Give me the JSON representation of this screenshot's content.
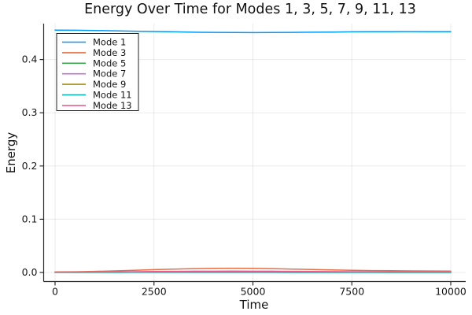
{
  "chart_data": {
    "type": "line",
    "title": "Energy Over Time for Modes 1, 3, 5, 7, 9, 11, 13",
    "xlabel": "Time",
    "ylabel": "Energy",
    "xlim": [
      0,
      10000
    ],
    "ylim": [
      0,
      0.47
    ],
    "xticks": [
      0,
      2500,
      5000,
      7500,
      10000
    ],
    "yticks": [
      0.0,
      0.1,
      0.2,
      0.3,
      0.4
    ],
    "grid": true,
    "legend_position": "top-left",
    "colors": {
      "axis": "#2a2a2a",
      "grid": "rgba(0,0,0,0.08)",
      "legend_border": "#222222",
      "background": "#ffffff"
    },
    "x": [
      0,
      500,
      1000,
      1500,
      2000,
      2500,
      3000,
      3500,
      4000,
      4500,
      5000,
      5500,
      6000,
      6500,
      7000,
      7500,
      8000,
      8500,
      9000,
      9500,
      10000
    ],
    "series": [
      {
        "name": "Mode 1",
        "color": "#009AFA",
        "values": [
          0.4553,
          0.455,
          0.4546,
          0.454,
          0.4533,
          0.4526,
          0.452,
          0.4514,
          0.451,
          0.4507,
          0.4506,
          0.4507,
          0.451,
          0.4513,
          0.4517,
          0.452,
          0.4522,
          0.4524,
          0.4525,
          0.4524,
          0.4522
        ]
      },
      {
        "name": "Mode 3",
        "color": "#E36F47",
        "values": [
          0.001,
          0.0014,
          0.0021,
          0.003,
          0.0041,
          0.0053,
          0.0064,
          0.0073,
          0.0078,
          0.008,
          0.0078,
          0.0072,
          0.0064,
          0.0056,
          0.0048,
          0.0041,
          0.0036,
          0.0032,
          0.0029,
          0.0028,
          0.0027
        ]
      },
      {
        "name": "Mode 5",
        "color": "#3DA44E",
        "values": [
          0.0004,
          0.0005,
          0.0006,
          0.0007,
          0.0008,
          0.0009,
          0.001,
          0.001,
          0.0011,
          0.0011,
          0.001,
          0.001,
          0.0009,
          0.0008,
          0.0008,
          0.0007,
          0.0007,
          0.0006,
          0.0006,
          0.0006,
          0.0006
        ]
      },
      {
        "name": "Mode 7",
        "color": "#C371D2",
        "values": [
          0.0003,
          0.0003,
          0.0004,
          0.0004,
          0.0005,
          0.0005,
          0.0006,
          0.0006,
          0.0006,
          0.0006,
          0.0006,
          0.0005,
          0.0005,
          0.0005,
          0.0004,
          0.0004,
          0.0004,
          0.0004,
          0.0003,
          0.0003,
          0.0003
        ]
      },
      {
        "name": "Mode 9",
        "color": "#AC8E17",
        "values": [
          0.0002,
          0.0002,
          0.0003,
          0.0003,
          0.0003,
          0.0004,
          0.0004,
          0.0004,
          0.0004,
          0.0004,
          0.0004,
          0.0004,
          0.0003,
          0.0003,
          0.0003,
          0.0003,
          0.0003,
          0.0002,
          0.0002,
          0.0002,
          0.0002
        ]
      },
      {
        "name": "Mode 11",
        "color": "#00AAAE",
        "values": [
          0.0002,
          0.0002,
          0.0002,
          0.0002,
          0.0003,
          0.0003,
          0.0003,
          0.0003,
          0.0003,
          0.0003,
          0.0003,
          0.0003,
          0.0002,
          0.0002,
          0.0002,
          0.0002,
          0.0002,
          0.0002,
          0.0002,
          0.0002,
          0.0002
        ]
      },
      {
        "name": "Mode 13",
        "color": "#ED5E93",
        "values": [
          0.0006,
          0.0007,
          0.0009,
          0.0012,
          0.0015,
          0.0018,
          0.0021,
          0.0023,
          0.0024,
          0.0025,
          0.0024,
          0.0023,
          0.0021,
          0.0019,
          0.0017,
          0.0015,
          0.0013,
          0.0012,
          0.0011,
          0.001,
          0.001
        ]
      }
    ]
  }
}
